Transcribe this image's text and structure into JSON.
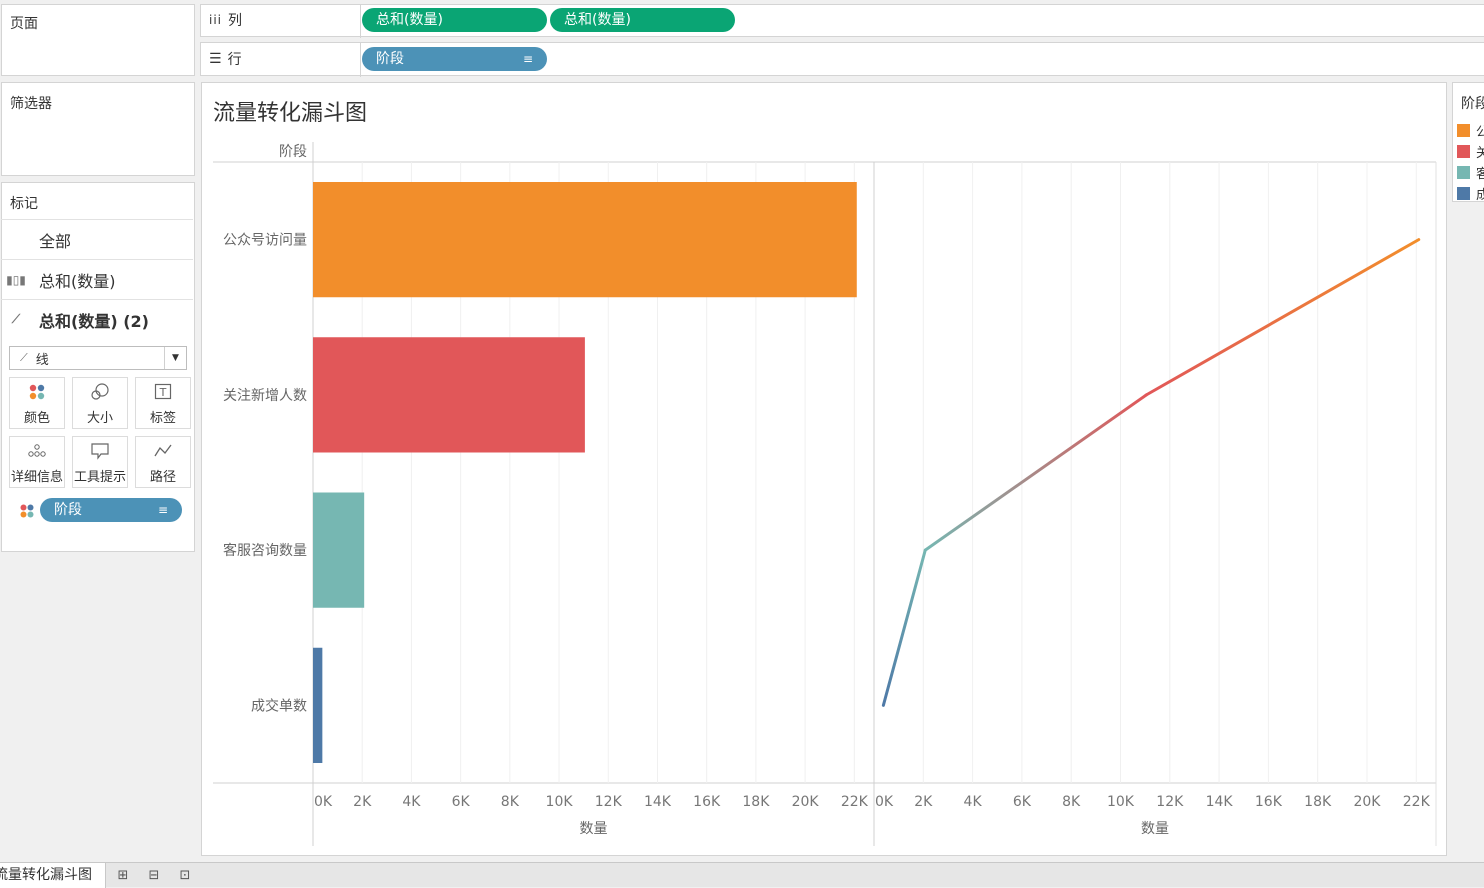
{
  "pages_card": {
    "title": "页面"
  },
  "filters_card": {
    "title": "筛选器"
  },
  "columns_shelf": {
    "label": "列",
    "pills": [
      "总和(数量)",
      "总和(数量)"
    ]
  },
  "rows_shelf": {
    "label": "行",
    "pills": [
      "阶段"
    ]
  },
  "marks_card": {
    "title": "标记",
    "layers": [
      "全部",
      "总和(数量)",
      "总和(数量) (2)"
    ],
    "mark_type": "线",
    "buttons": [
      "颜色",
      "大小",
      "标签",
      "详细信息",
      "工具提示",
      "路径"
    ],
    "color_pill": "阶段"
  },
  "legend": {
    "title": "阶段"
  },
  "sheet_tab": {
    "label": "流量转化漏斗图"
  },
  "colors": {
    "accent_green": "#0aa574",
    "pill_blue": "#4c92b7",
    "stage_colors": [
      "#f28e2b",
      "#e15759",
      "#76b7b2",
      "#4e79a7"
    ]
  },
  "chart_data": [
    {
      "type": "bar",
      "title": "流量转化漏斗图",
      "row_header": "阶段",
      "categories": [
        "公众号访问量",
        "关注新增人数",
        "客服咨询数量",
        "成交单数"
      ],
      "values": [
        22100,
        11050,
        2080,
        380
      ],
      "xlabel": "数量",
      "xlim": [
        0,
        22800
      ],
      "xticks": [
        "0K",
        "2K",
        "4K",
        "6K",
        "8K",
        "10K",
        "12K",
        "14K",
        "16K",
        "18K",
        "20K",
        "22K"
      ],
      "grid": true
    },
    {
      "type": "line",
      "categories": [
        "公众号访问量",
        "关注新增人数",
        "客服咨询数量",
        "成交单数"
      ],
      "values": [
        22100,
        11050,
        2080,
        380
      ],
      "xlabel": "数量",
      "xlim": [
        0,
        22800
      ],
      "xticks": [
        "0K",
        "2K",
        "4K",
        "6K",
        "8K",
        "10K",
        "12K",
        "14K",
        "16K",
        "18K",
        "20K",
        "22K"
      ],
      "grid": true
    }
  ]
}
